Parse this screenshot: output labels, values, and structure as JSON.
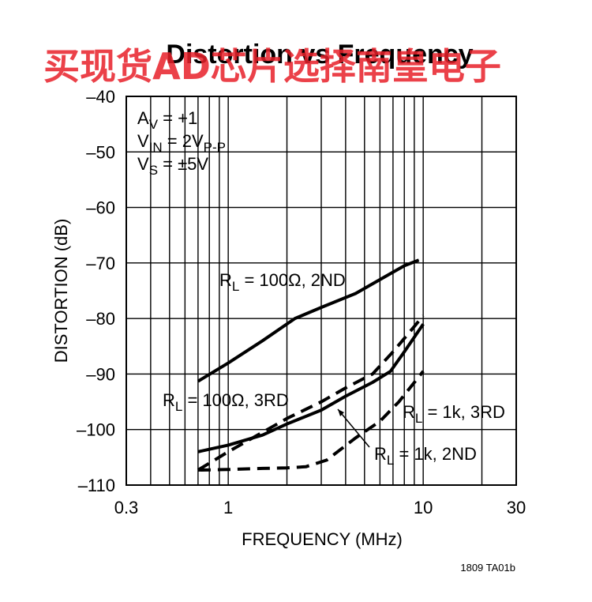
{
  "watermark": "买现货AD芯片选择南皇电子",
  "figure_id": "1809 TA01b",
  "chart_data": {
    "type": "line",
    "title": "Distortion vs Frequency",
    "xlabel": "FREQUENCY (MHz)",
    "ylabel": "DISTORTION (dB)",
    "x_scale": "log",
    "xlim": [
      0.3,
      30
    ],
    "ylim": [
      -110,
      -40
    ],
    "grid": true,
    "x_ticks": [
      0.3,
      1,
      10,
      30
    ],
    "x_tick_labels": [
      "0.3",
      "1",
      "10",
      "30"
    ],
    "y_ticks": [
      -40,
      -50,
      -60,
      -70,
      -80,
      -90,
      -100,
      -110
    ],
    "y_tick_labels": [
      "–40",
      "–50",
      "–60",
      "–70",
      "–80",
      "–90",
      "–100",
      "–110"
    ],
    "conditions": [
      {
        "main": "A",
        "sub": "V",
        "rest": " = +1"
      },
      {
        "main": "V",
        "sub": "IN",
        "rest": " = 2V",
        "sub2": "P-P"
      },
      {
        "main": "V",
        "sub": "S",
        "rest": " = ±5V"
      }
    ],
    "series": [
      {
        "name": "R_L = 100Ω, 2ND",
        "label_main": "R",
        "label_sub": "L",
        "label_rest": " = 100Ω, 2ND",
        "style": "solid",
        "x": [
          0.7,
          1.0,
          1.5,
          2.2,
          3.0,
          4.5,
          6.0,
          8.0,
          9.5
        ],
        "y": [
          -91.3,
          -88.0,
          -84.0,
          -80.0,
          -78.0,
          -75.5,
          -73.0,
          -70.5,
          -69.5
        ]
      },
      {
        "name": "R_L = 100Ω, 3RD",
        "label_main": "R",
        "label_sub": "L",
        "label_rest": " = 100Ω, 3RD",
        "style": "dashed",
        "x": [
          0.7,
          1.0,
          1.5,
          2.0,
          3.0,
          4.0,
          5.5,
          7.0,
          8.5,
          10.0
        ],
        "y": [
          -107.3,
          -104.0,
          -100.5,
          -98.0,
          -95.0,
          -92.5,
          -90.0,
          -86.0,
          -82.5,
          -79.5
        ]
      },
      {
        "name": "R_L = 1k, 2ND",
        "label_main": "R",
        "label_sub": "L",
        "label_rest": " = 1k, 2ND",
        "style": "solid",
        "x": [
          0.7,
          1.0,
          1.5,
          2.0,
          3.0,
          4.0,
          5.5,
          6.8,
          8.0,
          10.0
        ],
        "y": [
          -104.0,
          -102.8,
          -101.0,
          -99.0,
          -96.5,
          -94.0,
          -91.5,
          -89.5,
          -86.0,
          -81.0
        ]
      },
      {
        "name": "R_L = 1k, 3RD",
        "label_main": "R",
        "label_sub": "L",
        "label_rest": " = 1k, 3RD",
        "style": "dashed",
        "x": [
          0.7,
          1.0,
          1.5,
          2.0,
          2.5,
          3.2,
          4.5,
          6.0,
          7.5,
          10.0
        ],
        "y": [
          -107.3,
          -107.2,
          -107.0,
          -106.9,
          -106.7,
          -105.5,
          -101.5,
          -98.5,
          -95.0,
          -89.5
        ]
      }
    ]
  }
}
